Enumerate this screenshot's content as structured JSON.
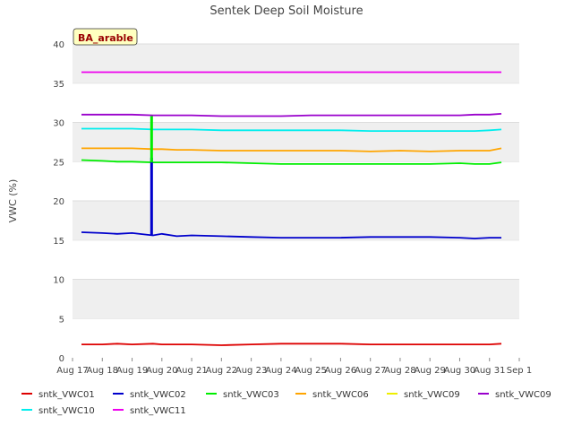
{
  "chart_data": {
    "type": "line",
    "title": "Sentek Deep Soil Moisture",
    "ylabel": "VWC (%)",
    "xlabel": "",
    "ylim": [
      0,
      40
    ],
    "yticks": [
      0,
      5,
      10,
      15,
      20,
      25,
      30,
      35,
      40
    ],
    "xlim": [
      "2024-08-17",
      "2024-09-01"
    ],
    "xticks": [
      "Aug 17",
      "Aug 18",
      "Aug 19",
      "Aug 20",
      "Aug 21",
      "Aug 22",
      "Aug 23",
      "Aug 24",
      "Aug 25",
      "Aug 26",
      "Aug 27",
      "Aug 28",
      "Aug 29",
      "Aug 30",
      "Aug 31",
      "Sep 1"
    ],
    "annotation": "BA_arable",
    "grid": "horizontal bands",
    "legend_placement": "bottom",
    "x": [
      0.3,
      1.0,
      1.5,
      2.0,
      2.7,
      3.0,
      3.5,
      4.0,
      5.0,
      6.0,
      7.0,
      8.0,
      9.0,
      10.0,
      11.0,
      12.0,
      13.0,
      13.5,
      14.0,
      14.4
    ],
    "series": [
      {
        "name": "sntk_VWC01",
        "color": "#dd0000",
        "values": [
          1.7,
          1.7,
          1.8,
          1.7,
          1.8,
          1.7,
          1.7,
          1.7,
          1.6,
          1.7,
          1.8,
          1.8,
          1.8,
          1.7,
          1.7,
          1.7,
          1.7,
          1.7,
          1.7,
          1.8
        ]
      },
      {
        "name": "sntk_VWC02",
        "color": "#0000cc",
        "values": [
          16.0,
          15.9,
          15.8,
          15.9,
          15.6,
          15.8,
          15.5,
          15.6,
          15.5,
          15.4,
          15.3,
          15.3,
          15.3,
          15.4,
          15.4,
          15.4,
          15.3,
          15.2,
          15.3,
          15.3
        ]
      },
      {
        "name": "sntk_VWC03",
        "color": "#00ee00",
        "values": [
          25.2,
          25.1,
          25.0,
          25.0,
          24.9,
          24.9,
          24.9,
          24.9,
          24.9,
          24.8,
          24.7,
          24.7,
          24.7,
          24.7,
          24.7,
          24.7,
          24.8,
          24.7,
          24.7,
          24.9
        ]
      },
      {
        "name": "sntk_VWC06",
        "color": "#ffa500",
        "values": [
          26.7,
          26.7,
          26.7,
          26.7,
          26.6,
          26.6,
          26.5,
          26.5,
          26.4,
          26.4,
          26.4,
          26.4,
          26.4,
          26.3,
          26.4,
          26.3,
          26.4,
          26.4,
          26.4,
          26.7
        ]
      },
      {
        "name": "sntk_VWC09",
        "color": "#eeee00",
        "values": [
          null,
          null,
          null,
          null,
          null,
          null,
          null,
          null,
          null,
          null,
          null,
          null,
          null,
          null,
          null,
          null,
          null,
          null,
          null,
          null
        ]
      },
      {
        "name": "sntk_VWC09",
        "color": "#9900cc",
        "values": [
          31.0,
          31.0,
          31.0,
          31.0,
          30.9,
          30.9,
          30.9,
          30.9,
          30.8,
          30.8,
          30.8,
          30.9,
          30.9,
          30.9,
          30.9,
          30.9,
          30.9,
          31.0,
          31.0,
          31.1
        ]
      },
      {
        "name": "sntk_VWC10",
        "color": "#00eeee",
        "values": [
          29.2,
          29.2,
          29.2,
          29.2,
          29.1,
          29.1,
          29.1,
          29.1,
          29.0,
          29.0,
          29.0,
          29.0,
          29.0,
          28.9,
          28.9,
          28.9,
          28.9,
          28.9,
          29.0,
          29.1
        ]
      },
      {
        "name": "sntk_VWC11",
        "color": "#ee00ee",
        "values": [
          36.4,
          36.4,
          36.4,
          36.4,
          36.4,
          36.4,
          36.4,
          36.4,
          36.4,
          36.4,
          36.4,
          36.4,
          36.4,
          36.4,
          36.4,
          36.4,
          36.4,
          36.4,
          36.4,
          36.4
        ]
      }
    ],
    "spikes": [
      {
        "series": "sntk_VWC02",
        "x": 2.7,
        "value": 25.5
      },
      {
        "series": "sntk_VWC03",
        "x": 2.7,
        "value": 30.8
      }
    ]
  }
}
